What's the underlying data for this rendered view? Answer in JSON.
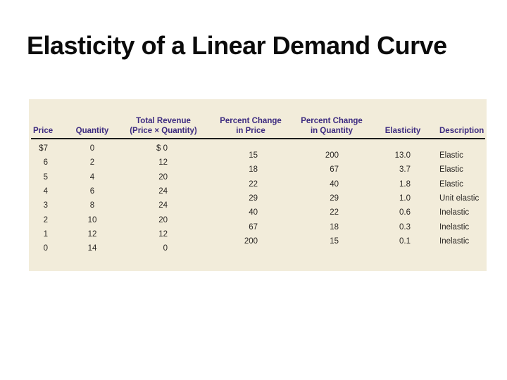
{
  "slide": {
    "title": "Elasticity of a Linear Demand Curve"
  },
  "table": {
    "headers": {
      "price": "Price",
      "quantity": "Quantity",
      "total_revenue_line1": "Total Revenue",
      "total_revenue_line2": "(Price × Quantity)",
      "pct_price_line1": "Percent Change",
      "pct_price_line2": "in Price",
      "pct_qty_line1": "Percent Change",
      "pct_qty_line2": "in Quantity",
      "elasticity": "Elasticity",
      "description": "Description"
    },
    "main_rows": [
      {
        "price": "$7",
        "quantity": "0",
        "total_revenue": "$ 0"
      },
      {
        "price": "6",
        "quantity": "2",
        "total_revenue": "12"
      },
      {
        "price": "5",
        "quantity": "4",
        "total_revenue": "20"
      },
      {
        "price": "4",
        "quantity": "6",
        "total_revenue": "24"
      },
      {
        "price": "3",
        "quantity": "8",
        "total_revenue": "24"
      },
      {
        "price": "2",
        "quantity": "10",
        "total_revenue": "20"
      },
      {
        "price": "1",
        "quantity": "12",
        "total_revenue": "12"
      },
      {
        "price": "0",
        "quantity": "14",
        "total_revenue": "0"
      }
    ],
    "mid_rows": [
      {
        "pct_price": "15",
        "pct_qty": "200",
        "elasticity": "13.0",
        "description": "Elastic"
      },
      {
        "pct_price": "18",
        "pct_qty": "67",
        "elasticity": "3.7",
        "description": "Elastic"
      },
      {
        "pct_price": "22",
        "pct_qty": "40",
        "elasticity": "1.8",
        "description": "Elastic"
      },
      {
        "pct_price": "29",
        "pct_qty": "29",
        "elasticity": "1.0",
        "description": "Unit elastic"
      },
      {
        "pct_price": "40",
        "pct_qty": "22",
        "elasticity": "0.6",
        "description": "Inelastic"
      },
      {
        "pct_price": "67",
        "pct_qty": "18",
        "elasticity": "0.3",
        "description": "Inelastic"
      },
      {
        "pct_price": "200",
        "pct_qty": "15",
        "elasticity": "0.1",
        "description": "Inelastic"
      }
    ],
    "colors": {
      "table_background": "#F2ECDA",
      "header_text": "#3D2B80",
      "body_text": "#2A2724",
      "header_rule": "#1C1C1C"
    }
  }
}
